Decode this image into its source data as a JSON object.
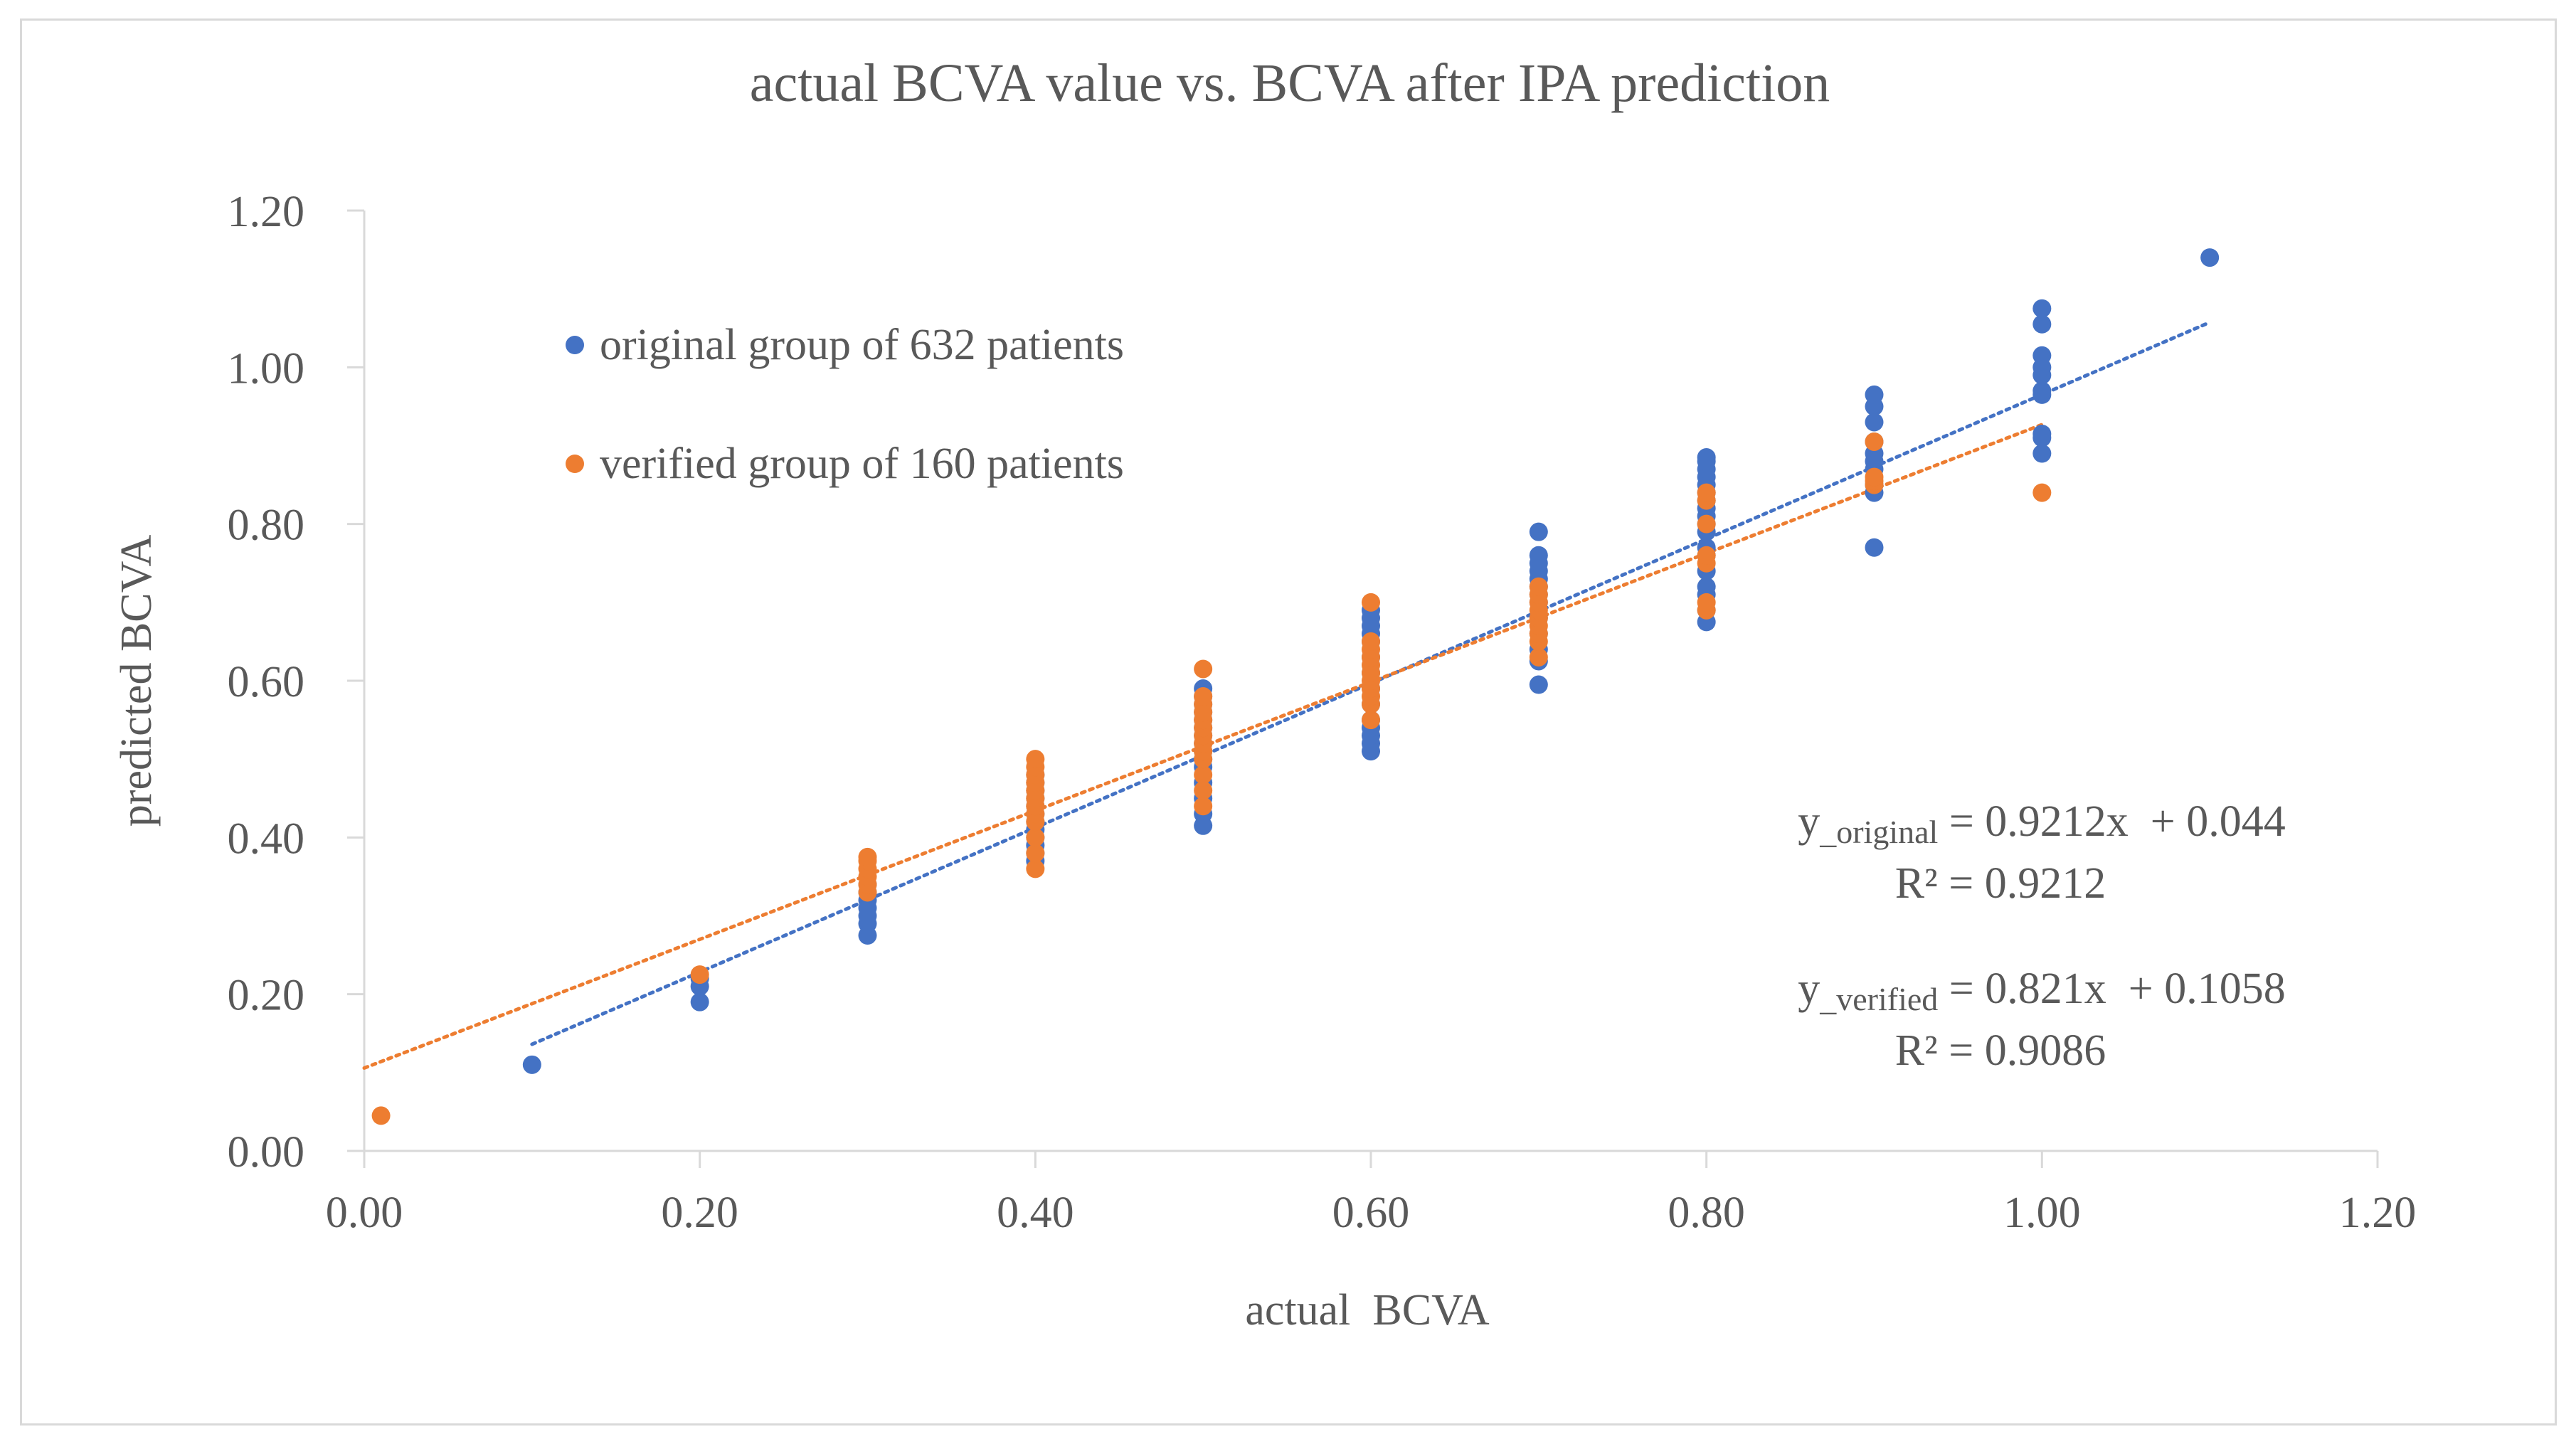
{
  "chart_data": {
    "type": "scatter",
    "title": "actual BCVA value vs. BCVA after IPA  prediction",
    "xlabel": "actual  BCVA",
    "ylabel": "predicted BCVA",
    "xlim": [
      0,
      1.2
    ],
    "ylim": [
      0,
      1.2
    ],
    "x_ticks": [
      "0.00",
      "0.20",
      "0.40",
      "0.60",
      "0.80",
      "1.00",
      "1.20"
    ],
    "y_ticks": [
      "0.00",
      "0.20",
      "0.40",
      "0.60",
      "0.80",
      "1.00",
      "1.20"
    ],
    "grid": false,
    "legend_position": "top-left",
    "series": [
      {
        "name": "original group of 632 patients",
        "color": "#4472c4",
        "points": [
          [
            0.1,
            0.11
          ],
          [
            0.2,
            0.19
          ],
          [
            0.2,
            0.21
          ],
          [
            0.2,
            0.22
          ],
          [
            0.3,
            0.275
          ],
          [
            0.3,
            0.29
          ],
          [
            0.3,
            0.3
          ],
          [
            0.3,
            0.31
          ],
          [
            0.3,
            0.32
          ],
          [
            0.3,
            0.33
          ],
          [
            0.3,
            0.34
          ],
          [
            0.4,
            0.37
          ],
          [
            0.4,
            0.38
          ],
          [
            0.4,
            0.39
          ],
          [
            0.4,
            0.4
          ],
          [
            0.4,
            0.41
          ],
          [
            0.4,
            0.42
          ],
          [
            0.4,
            0.43
          ],
          [
            0.4,
            0.44
          ],
          [
            0.4,
            0.45
          ],
          [
            0.4,
            0.46
          ],
          [
            0.4,
            0.47
          ],
          [
            0.4,
            0.48
          ],
          [
            0.5,
            0.415
          ],
          [
            0.5,
            0.43
          ],
          [
            0.5,
            0.45
          ],
          [
            0.5,
            0.47
          ],
          [
            0.5,
            0.49
          ],
          [
            0.5,
            0.5
          ],
          [
            0.5,
            0.51
          ],
          [
            0.5,
            0.52
          ],
          [
            0.5,
            0.53
          ],
          [
            0.5,
            0.54
          ],
          [
            0.5,
            0.55
          ],
          [
            0.5,
            0.56
          ],
          [
            0.5,
            0.57
          ],
          [
            0.5,
            0.58
          ],
          [
            0.5,
            0.59
          ],
          [
            0.6,
            0.51
          ],
          [
            0.6,
            0.52
          ],
          [
            0.6,
            0.53
          ],
          [
            0.6,
            0.54
          ],
          [
            0.6,
            0.55
          ],
          [
            0.6,
            0.57
          ],
          [
            0.6,
            0.59
          ],
          [
            0.6,
            0.61
          ],
          [
            0.6,
            0.63
          ],
          [
            0.6,
            0.65
          ],
          [
            0.6,
            0.66
          ],
          [
            0.6,
            0.67
          ],
          [
            0.6,
            0.68
          ],
          [
            0.6,
            0.69
          ],
          [
            0.7,
            0.595
          ],
          [
            0.7,
            0.625
          ],
          [
            0.7,
            0.64
          ],
          [
            0.7,
            0.66
          ],
          [
            0.7,
            0.68
          ],
          [
            0.7,
            0.7
          ],
          [
            0.7,
            0.71
          ],
          [
            0.7,
            0.72
          ],
          [
            0.7,
            0.73
          ],
          [
            0.7,
            0.74
          ],
          [
            0.7,
            0.75
          ],
          [
            0.7,
            0.76
          ],
          [
            0.7,
            0.79
          ],
          [
            0.8,
            0.675
          ],
          [
            0.8,
            0.69
          ],
          [
            0.8,
            0.71
          ],
          [
            0.8,
            0.72
          ],
          [
            0.8,
            0.74
          ],
          [
            0.8,
            0.76
          ],
          [
            0.8,
            0.77
          ],
          [
            0.8,
            0.79
          ],
          [
            0.8,
            0.8
          ],
          [
            0.8,
            0.81
          ],
          [
            0.8,
            0.82
          ],
          [
            0.8,
            0.83
          ],
          [
            0.8,
            0.84
          ],
          [
            0.8,
            0.85
          ],
          [
            0.8,
            0.86
          ],
          [
            0.8,
            0.87
          ],
          [
            0.8,
            0.88
          ],
          [
            0.8,
            0.885
          ],
          [
            0.9,
            0.77
          ],
          [
            0.9,
            0.84
          ],
          [
            0.9,
            0.85
          ],
          [
            0.9,
            0.87
          ],
          [
            0.9,
            0.88
          ],
          [
            0.9,
            0.89
          ],
          [
            0.9,
            0.905
          ],
          [
            0.9,
            0.93
          ],
          [
            0.9,
            0.95
          ],
          [
            0.9,
            0.965
          ],
          [
            1.0,
            0.89
          ],
          [
            1.0,
            0.91
          ],
          [
            1.0,
            0.915
          ],
          [
            1.0,
            0.965
          ],
          [
            1.0,
            0.97
          ],
          [
            1.0,
            0.99
          ],
          [
            1.0,
            1.0
          ],
          [
            1.0,
            1.015
          ],
          [
            1.0,
            1.055
          ],
          [
            1.0,
            1.075
          ],
          [
            1.1,
            1.14
          ]
        ],
        "trendline": {
          "slope": 0.9212,
          "intercept": 0.044,
          "x_range": [
            0.1,
            1.1
          ]
        }
      },
      {
        "name": "verified group of 160 patients",
        "color": "#ed7d31",
        "points": [
          [
            0.01,
            0.045
          ],
          [
            0.2,
            0.225
          ],
          [
            0.3,
            0.33
          ],
          [
            0.3,
            0.34
          ],
          [
            0.3,
            0.35
          ],
          [
            0.3,
            0.36
          ],
          [
            0.3,
            0.37
          ],
          [
            0.3,
            0.375
          ],
          [
            0.4,
            0.36
          ],
          [
            0.4,
            0.38
          ],
          [
            0.4,
            0.4
          ],
          [
            0.4,
            0.42
          ],
          [
            0.4,
            0.43
          ],
          [
            0.4,
            0.44
          ],
          [
            0.4,
            0.45
          ],
          [
            0.4,
            0.46
          ],
          [
            0.4,
            0.47
          ],
          [
            0.4,
            0.48
          ],
          [
            0.4,
            0.49
          ],
          [
            0.4,
            0.5
          ],
          [
            0.5,
            0.44
          ],
          [
            0.5,
            0.46
          ],
          [
            0.5,
            0.48
          ],
          [
            0.5,
            0.5
          ],
          [
            0.5,
            0.51
          ],
          [
            0.5,
            0.52
          ],
          [
            0.5,
            0.53
          ],
          [
            0.5,
            0.54
          ],
          [
            0.5,
            0.55
          ],
          [
            0.5,
            0.56
          ],
          [
            0.5,
            0.57
          ],
          [
            0.5,
            0.58
          ],
          [
            0.5,
            0.615
          ],
          [
            0.6,
            0.55
          ],
          [
            0.6,
            0.57
          ],
          [
            0.6,
            0.58
          ],
          [
            0.6,
            0.59
          ],
          [
            0.6,
            0.6
          ],
          [
            0.6,
            0.61
          ],
          [
            0.6,
            0.62
          ],
          [
            0.6,
            0.63
          ],
          [
            0.6,
            0.64
          ],
          [
            0.6,
            0.65
          ],
          [
            0.6,
            0.7
          ],
          [
            0.7,
            0.63
          ],
          [
            0.7,
            0.65
          ],
          [
            0.7,
            0.66
          ],
          [
            0.7,
            0.67
          ],
          [
            0.7,
            0.68
          ],
          [
            0.7,
            0.69
          ],
          [
            0.7,
            0.7
          ],
          [
            0.7,
            0.71
          ],
          [
            0.7,
            0.72
          ],
          [
            0.8,
            0.69
          ],
          [
            0.8,
            0.7
          ],
          [
            0.8,
            0.75
          ],
          [
            0.8,
            0.76
          ],
          [
            0.8,
            0.8
          ],
          [
            0.8,
            0.83
          ],
          [
            0.8,
            0.84
          ],
          [
            0.9,
            0.85
          ],
          [
            0.9,
            0.855
          ],
          [
            0.9,
            0.86
          ],
          [
            0.9,
            0.905
          ],
          [
            1.0,
            0.84
          ]
        ],
        "trendline": {
          "slope": 0.821,
          "intercept": 0.1058,
          "x_range": [
            0.0,
            1.0
          ]
        }
      }
    ],
    "annotations": {
      "original": {
        "y_prefix": "y",
        "subscript": "_original",
        "equation": " = 0.9212x  + 0.044",
        "r2": "R² = 0.9212"
      },
      "verified": {
        "y_prefix": "y",
        "subscript": "_verified",
        "equation": " = 0.821x  + 0.1058",
        "r2": "R² = 0.9086"
      }
    }
  }
}
